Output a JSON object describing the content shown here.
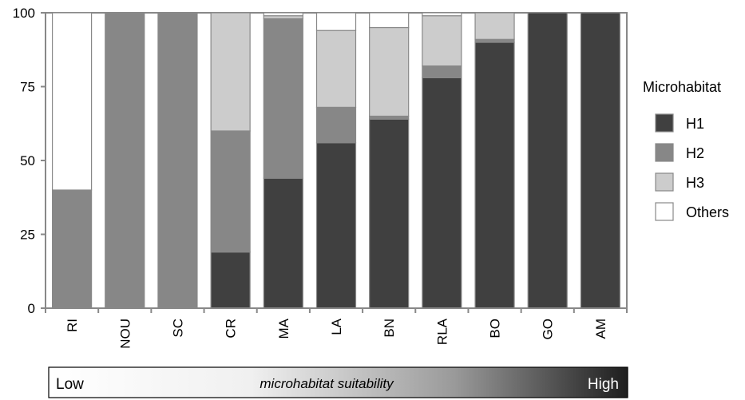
{
  "chart_data": {
    "type": "bar",
    "stacked": true,
    "categories": [
      "RI",
      "NOU",
      "SC",
      "CR",
      "MA",
      "LA",
      "BN",
      "RLA",
      "BO",
      "GO",
      "AM"
    ],
    "series": [
      {
        "name": "H1",
        "color": "#404040",
        "values": [
          0,
          0,
          0,
          19,
          44,
          56,
          64,
          78,
          90,
          100,
          100
        ]
      },
      {
        "name": "H2",
        "color": "#878787",
        "values": [
          40,
          100,
          100,
          41,
          54,
          12,
          1,
          4,
          1,
          0,
          0
        ]
      },
      {
        "name": "H3",
        "color": "#cccccc",
        "values": [
          0,
          0,
          0,
          40,
          1,
          26,
          30,
          17,
          9,
          0,
          0
        ]
      },
      {
        "name": "Others",
        "color": "#ffffff",
        "values": [
          60,
          0,
          0,
          0,
          1,
          6,
          5,
          1,
          0,
          0,
          0
        ]
      }
    ],
    "ylim": [
      0,
      100
    ],
    "yticks": [
      "0",
      "25",
      "50",
      "75",
      "100"
    ],
    "legend_title": "Microhabitat",
    "legend_position": "right",
    "grid": false
  },
  "scale_bar": {
    "low": "Low",
    "caption": "microhabitat suitability",
    "high": "High"
  }
}
